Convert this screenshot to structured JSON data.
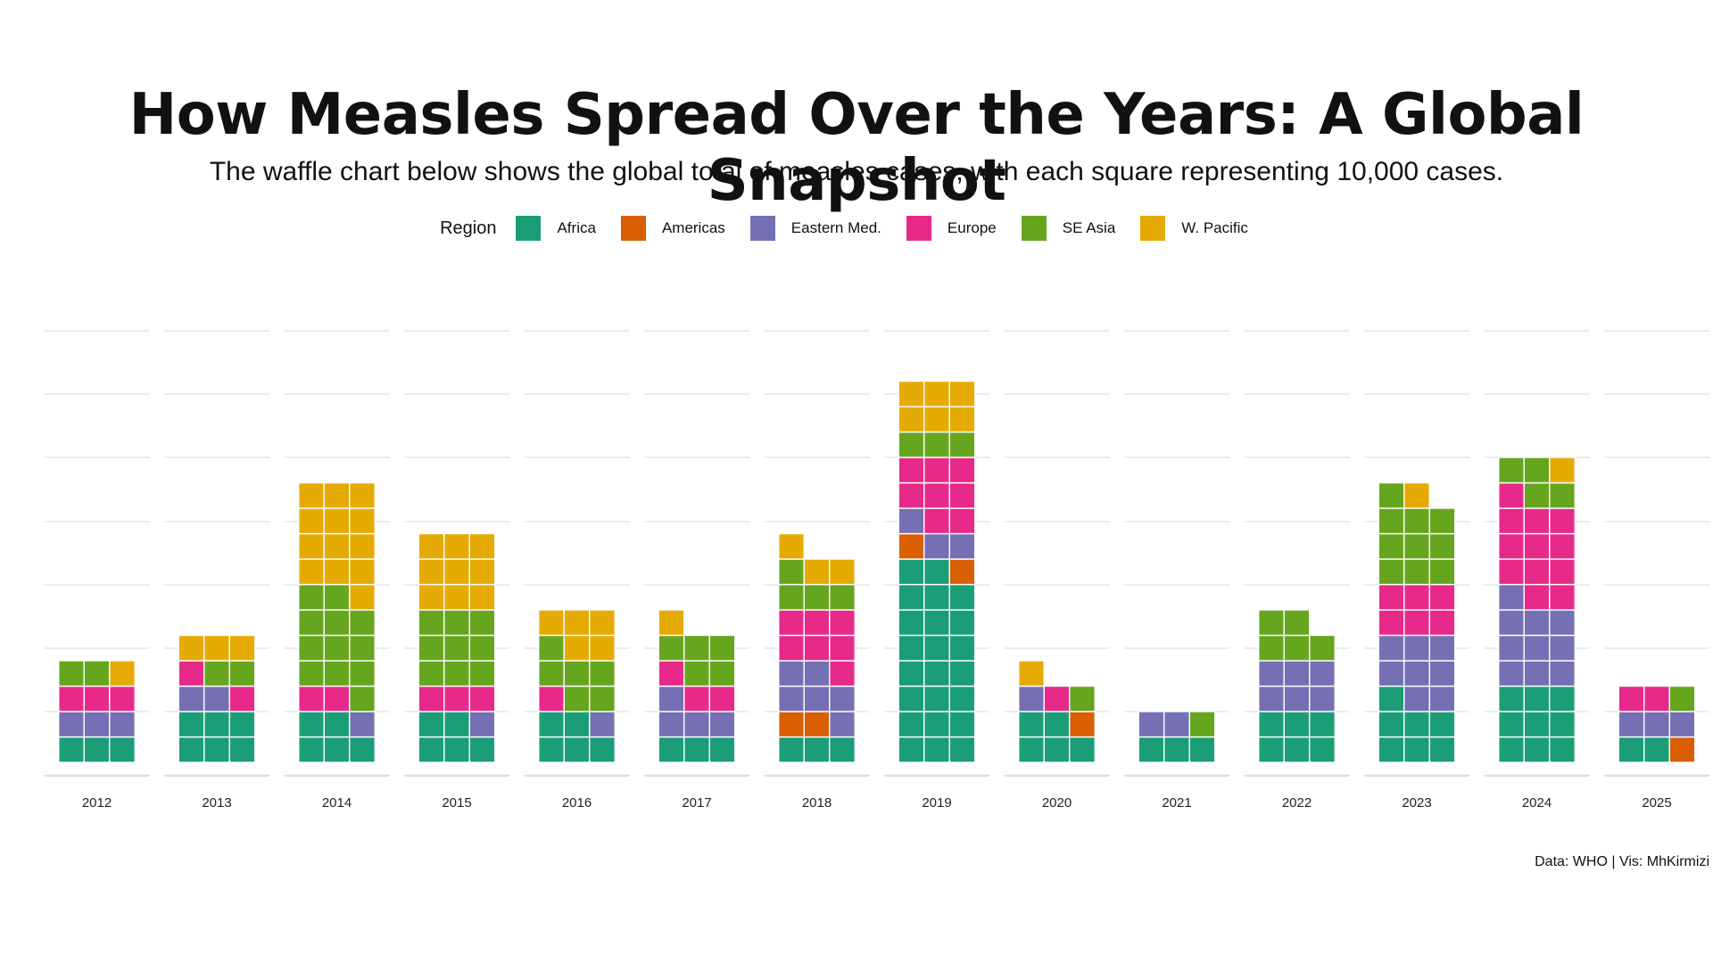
{
  "title": "How Measles Spread Over the Years: A Global Snapshot",
  "subtitle": "The waffle chart below shows the global total of measles cases, with each square representing 10,000 cases.",
  "caption": "Data: WHO | Vis: MhKirmizi",
  "legend": {
    "title": "Region",
    "items": [
      {
        "label": "Africa",
        "color": "#1b9e77"
      },
      {
        "label": "Americas",
        "color": "#d95f02"
      },
      {
        "label": "Eastern Med.",
        "color": "#7570b3"
      },
      {
        "label": "Europe",
        "color": "#e7298a"
      },
      {
        "label": "SE Asia",
        "color": "#66a61e"
      },
      {
        "label": "W. Pacific",
        "color": "#e6ab02"
      }
    ]
  },
  "chart_data": {
    "type": "waffle",
    "unit": "10,000 cases",
    "columns_per_waffle": 3,
    "legend_position": "top",
    "grid": "horizontal",
    "categories": [
      "2012",
      "2013",
      "2014",
      "2015",
      "2016",
      "2017",
      "2018",
      "2019",
      "2020",
      "2021",
      "2022",
      "2023",
      "2024",
      "2025"
    ],
    "series": [
      {
        "name": "Africa",
        "values": [
          3,
          6,
          5,
          5,
          5,
          3,
          3,
          23,
          5,
          3,
          6,
          7,
          9,
          2
        ]
      },
      {
        "name": "Americas",
        "values": [
          0,
          0,
          0,
          0,
          0,
          0,
          2,
          2,
          1,
          0,
          0,
          0,
          0,
          1
        ]
      },
      {
        "name": "Eastern Med.",
        "values": [
          3,
          2,
          1,
          1,
          1,
          4,
          6,
          3,
          1,
          2,
          6,
          8,
          10,
          3
        ]
      },
      {
        "name": "Europe",
        "values": [
          3,
          2,
          2,
          3,
          1,
          3,
          7,
          8,
          1,
          0,
          0,
          6,
          12,
          2
        ]
      },
      {
        "name": "SE Asia",
        "values": [
          2,
          2,
          12,
          9,
          6,
          5,
          4,
          3,
          1,
          1,
          5,
          10,
          4,
          1
        ]
      },
      {
        "name": "W. Pacific",
        "values": [
          1,
          3,
          13,
          9,
          5,
          1,
          3,
          6,
          1,
          0,
          0,
          1,
          1,
          0
        ]
      }
    ]
  }
}
